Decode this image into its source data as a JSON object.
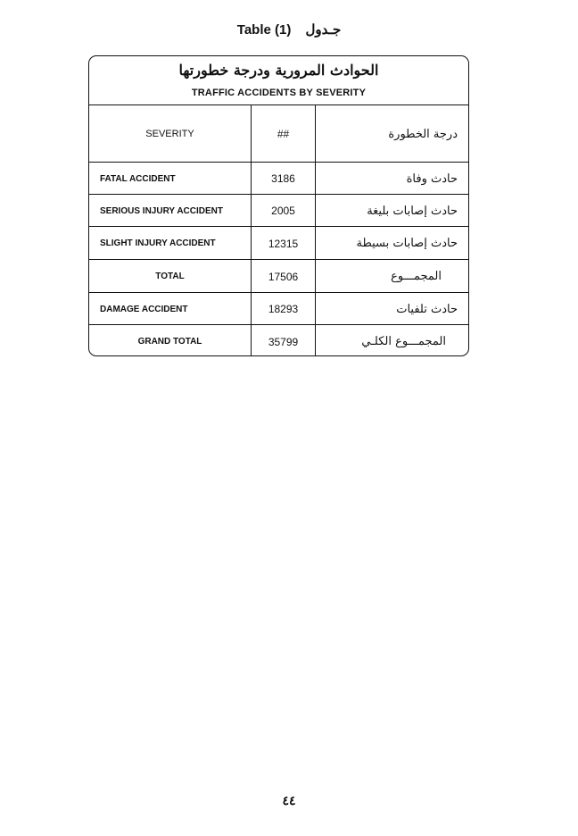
{
  "caption": {
    "en": "Table (1)",
    "ar": "جـدول"
  },
  "table": {
    "title_ar": "الحوادث المرورية ودرجة خطورتها",
    "title_en": "TRAFFIC ACCIDENTS BY SEVERITY",
    "headers": {
      "en": "SEVERITY",
      "num": "##",
      "ar": "درجة الخطورة"
    },
    "rows": [
      {
        "en": "FATAL ACCIDENT",
        "value": "3186",
        "ar": "حادث وفاة"
      },
      {
        "en": "SERIOUS INJURY ACCIDENT",
        "value": "2005",
        "ar": "حادث إصابات بليغة"
      },
      {
        "en": "SLIGHT INJURY ACCIDENT",
        "value": "12315",
        "ar": "حادث إصابات بسيطة"
      },
      {
        "en": "TOTAL",
        "value": "17506",
        "ar": "المجمـــوع"
      },
      {
        "en": "DAMAGE ACCIDENT",
        "value": "18293",
        "ar": "حادث تلفيات"
      },
      {
        "en": "GRAND TOTAL",
        "value": "35799",
        "ar": "المجمـــوع الكلـي"
      }
    ]
  },
  "page_number": "٤٤"
}
